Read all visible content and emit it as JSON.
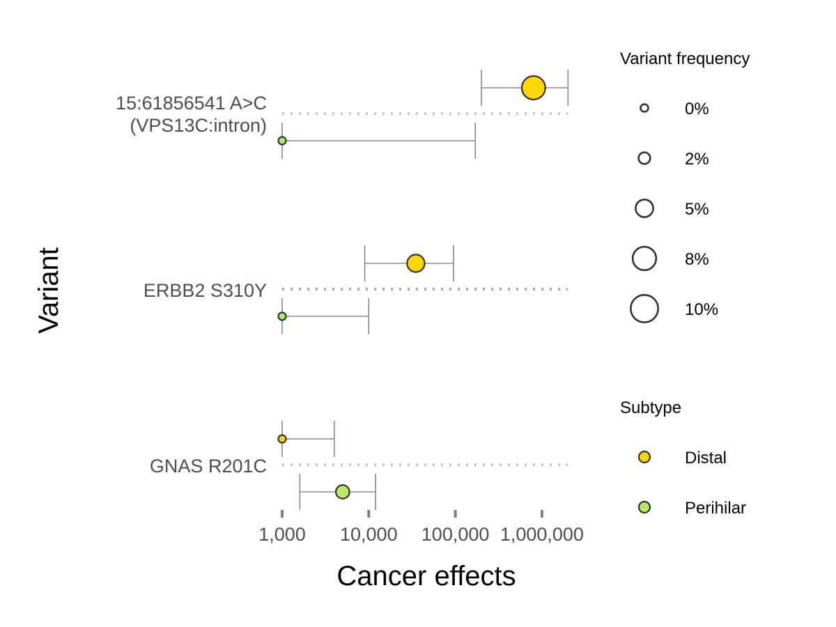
{
  "chart_data": {
    "type": "dot-range",
    "xlabel": "Cancer effects",
    "ylabel": "Variant",
    "xscale": "log10",
    "xlim": [
      1000,
      2000000
    ],
    "xticks": [
      {
        "value": 1000,
        "label": "1,000"
      },
      {
        "value": 10000,
        "label": "10,000"
      },
      {
        "value": 100000,
        "label": "100,000"
      },
      {
        "value": 1000000,
        "label": "1,000,000"
      }
    ],
    "variants": [
      {
        "label_lines": [
          "15:61856541 A>C",
          "(VPS13C:intron)"
        ],
        "points": [
          {
            "subtype": "Distal",
            "effect": 800000,
            "ci_low": 200000,
            "ci_high": 2000000,
            "frequency_pct": 8
          },
          {
            "subtype": "Perihilar",
            "effect": 1000,
            "ci_low": 1000,
            "ci_high": 170000,
            "frequency_pct": 0
          }
        ]
      },
      {
        "label_lines": [
          "ERBB2 S310Y"
        ],
        "points": [
          {
            "subtype": "Distal",
            "effect": 35000,
            "ci_low": 9000,
            "ci_high": 95000,
            "frequency_pct": 5
          },
          {
            "subtype": "Perihilar",
            "effect": 1000,
            "ci_low": 1000,
            "ci_high": 10000,
            "frequency_pct": 0
          }
        ]
      },
      {
        "label_lines": [
          "GNAS R201C"
        ],
        "points": [
          {
            "subtype": "Distal",
            "effect": 1000,
            "ci_low": 1000,
            "ci_high": 4000,
            "frequency_pct": 0
          },
          {
            "subtype": "Perihilar",
            "effect": 5000,
            "ci_low": 1600,
            "ci_high": 12000,
            "frequency_pct": 3
          }
        ]
      }
    ],
    "legend_size": {
      "title": "Variant frequency",
      "entries": [
        {
          "label": "0%",
          "value": 0
        },
        {
          "label": "2%",
          "value": 2
        },
        {
          "label": "5%",
          "value": 5
        },
        {
          "label": "8%",
          "value": 8
        },
        {
          "label": "10%",
          "value": 10
        }
      ]
    },
    "legend_color": {
      "title": "Subtype",
      "entries": [
        {
          "label": "Distal",
          "color": "#FFD700"
        },
        {
          "label": "Perihilar",
          "color": "#B8E86A"
        }
      ]
    },
    "colors": {
      "Distal": "#FFD700",
      "Perihilar": "#B8E86A",
      "errorbar": "#7f8c8d",
      "point_stroke": "#333333",
      "separator": "#c8c8c8",
      "separator_mid": "#a8a8a8"
    }
  }
}
